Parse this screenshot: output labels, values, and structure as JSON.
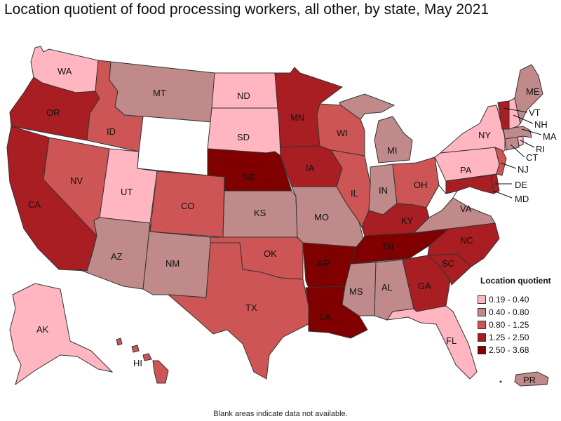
{
  "title": "Location quotient of food processing workers, all other, by state, May 2021",
  "legend": {
    "title": "Location quotient",
    "items": [
      {
        "label": "0.19 - 0.40",
        "color": "#ffb6c1"
      },
      {
        "label": "0.40 - 0.80",
        "color": "#c08a8a"
      },
      {
        "label": "0.80 - 1.25",
        "color": "#cd5555"
      },
      {
        "label": "1.25 - 2.50",
        "color": "#a81e23"
      },
      {
        "label": "2.50 - 3.68",
        "color": "#800000"
      }
    ]
  },
  "footnote": "Blank areas indicate data not available.",
  "states": {
    "WA": {
      "label": "WA",
      "class": 0
    },
    "OR": {
      "label": "OR",
      "class": 3
    },
    "CA": {
      "label": "CA",
      "class": 3
    },
    "ID": {
      "label": "ID",
      "class": 2
    },
    "NV": {
      "label": "NV",
      "class": 2
    },
    "UT": {
      "label": "UT",
      "class": 0
    },
    "AZ": {
      "label": "AZ",
      "class": 1
    },
    "MT": {
      "label": "MT",
      "class": 1
    },
    "WY": {
      "label": "",
      "class": -1
    },
    "CO": {
      "label": "CO",
      "class": 2
    },
    "NM": {
      "label": "NM",
      "class": 1
    },
    "ND": {
      "label": "ND",
      "class": 0
    },
    "SD": {
      "label": "SD",
      "class": 0
    },
    "NE": {
      "label": "NE",
      "class": 4
    },
    "KS": {
      "label": "KS",
      "class": 1
    },
    "OK": {
      "label": "OK",
      "class": 2
    },
    "TX": {
      "label": "TX",
      "class": 2
    },
    "MN": {
      "label": "MN",
      "class": 3
    },
    "IA": {
      "label": "IA",
      "class": 3
    },
    "MO": {
      "label": "MO",
      "class": 1
    },
    "AR": {
      "label": "AR",
      "class": 4
    },
    "LA": {
      "label": "LA",
      "class": 4
    },
    "WI": {
      "label": "WI",
      "class": 2
    },
    "IL": {
      "label": "IL",
      "class": 2
    },
    "MI": {
      "label": "MI",
      "class": 1
    },
    "IN": {
      "label": "IN",
      "class": 1
    },
    "OH": {
      "label": "OH",
      "class": 2
    },
    "KY": {
      "label": "KY",
      "class": 3
    },
    "TN": {
      "label": "TN",
      "class": 4
    },
    "MS": {
      "label": "MS",
      "class": 1
    },
    "AL": {
      "label": "AL",
      "class": 1
    },
    "GA": {
      "label": "GA",
      "class": 3
    },
    "FL": {
      "label": "FL",
      "class": 0
    },
    "SC": {
      "label": "SC",
      "class": 3
    },
    "NC": {
      "label": "NC",
      "class": 3
    },
    "VA": {
      "label": "VA",
      "class": 1
    },
    "WV": {
      "label": "",
      "class": -1
    },
    "PA": {
      "label": "PA",
      "class": 0
    },
    "NY": {
      "label": "NY",
      "class": 0
    },
    "MD": {
      "label": "MD",
      "class": 3
    },
    "DE": {
      "label": "DE",
      "class": 3
    },
    "NJ": {
      "label": "NJ",
      "class": 2
    },
    "CT": {
      "label": "CT",
      "class": 1
    },
    "RI": {
      "label": "RI",
      "class": 0
    },
    "MA": {
      "label": "MA",
      "class": 1
    },
    "VT": {
      "label": "VT",
      "class": 3
    },
    "NH": {
      "label": "NH",
      "class": 0
    },
    "ME": {
      "label": "ME",
      "class": 1
    },
    "AK": {
      "label": "AK",
      "class": 0
    },
    "HI": {
      "label": "HI",
      "class": 2
    },
    "PR": {
      "label": "PR",
      "class": 1
    }
  }
}
